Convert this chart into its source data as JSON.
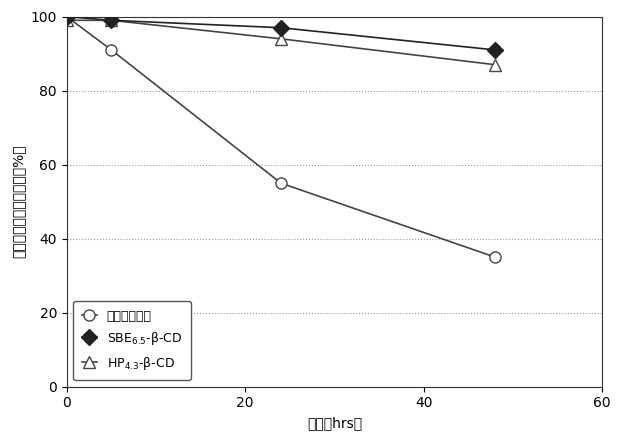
{
  "title": "",
  "xlabel": "時間（hrs）",
  "ylabel": "プラスグレルアッセイ（%）",
  "xlim": [
    0,
    60
  ],
  "ylim": [
    0,
    100
  ],
  "xticks": [
    0,
    20,
    40,
    60
  ],
  "yticks": [
    0,
    20,
    40,
    60,
    80,
    100
  ],
  "control": {
    "x": [
      0,
      5,
      24,
      48
    ],
    "y": [
      100,
      91,
      55,
      35
    ],
    "label": "コントロール",
    "color": "#444444",
    "marker": "o",
    "markerfacecolor": "white",
    "markeredgecolor": "#444444",
    "markersize": 8,
    "linewidth": 1.2
  },
  "sbe": {
    "x": [
      0,
      5,
      24,
      48
    ],
    "y": [
      100,
      99,
      97,
      91
    ],
    "label": "SBE$_{6.5}$-β-CD",
    "color": "#222222",
    "marker": "D",
    "markerfacecolor": "#222222",
    "markeredgecolor": "#222222",
    "markersize": 8,
    "linewidth": 1.2
  },
  "hp": {
    "x": [
      0,
      5,
      24,
      48
    ],
    "y": [
      99,
      99,
      94,
      87
    ],
    "label": "HP$_{4.3}$-β-CD",
    "color": "#444444",
    "marker": "^",
    "markerfacecolor": "white",
    "markeredgecolor": "#444444",
    "markersize": 8,
    "linewidth": 1.2
  },
  "background_color": "#ffffff",
  "legend_loc": "lower left",
  "legend_fontsize": 9,
  "axis_fontsize": 10,
  "tick_fontsize": 10
}
